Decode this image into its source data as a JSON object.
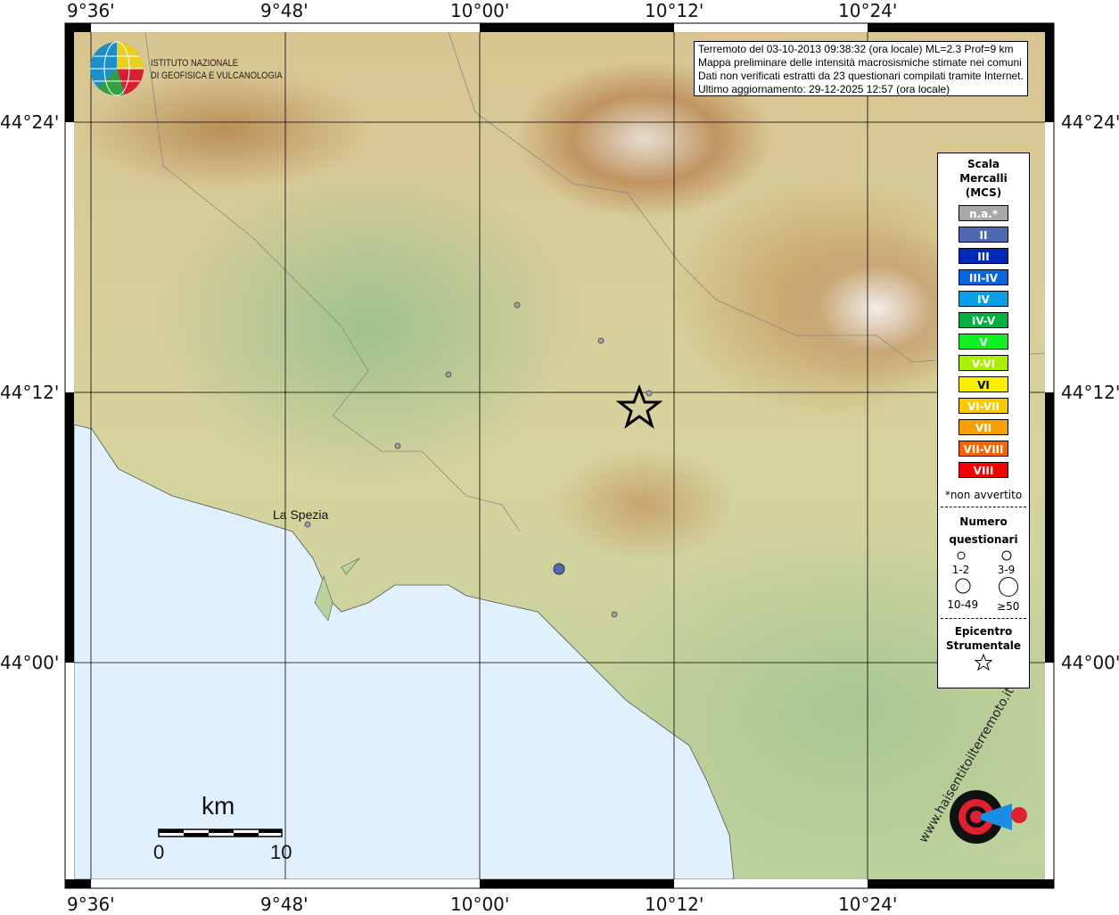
{
  "info": {
    "line1": "Terremoto del 03-10-2013 09:38:32 (ora locale) ML=2.3 Prof=9 km",
    "line2": "Mappa preliminare delle intensità macrosismiche stimate nei comuni",
    "line3": "Dati non verificati estratti da 23 questionari compilati tramite Internet.",
    "line4": "Ultimo aggiornamento: 29-12-2025 12:57 (ora locale)"
  },
  "logo": {
    "line1": "ISTITUTO NAZIONALE",
    "line2": "DI GEOFISICA E VULCANOLOGIA"
  },
  "lon_labels": [
    "9°36'",
    "9°48'",
    "10°00'",
    "10°12'",
    "10°24'"
  ],
  "lat_labels": [
    "44°24'",
    "44°12'",
    "44°00'"
  ],
  "city": "La Spezia",
  "legend": {
    "title1": "Scala",
    "title2": "Mercalli",
    "title3": "(MCS)",
    "items": [
      {
        "label": "n.a.*",
        "color": "#a8a8a8"
      },
      {
        "label": "II",
        "color": "#5068b0"
      },
      {
        "label": "III",
        "color": "#0028b8"
      },
      {
        "label": "III-IV",
        "color": "#0a64dc"
      },
      {
        "label": "IV",
        "color": "#0aa0e8"
      },
      {
        "label": "IV-V",
        "color": "#00b040"
      },
      {
        "label": "V",
        "color": "#10f020"
      },
      {
        "label": "V-VI",
        "color": "#a8f000"
      },
      {
        "label": "VI",
        "color": "#f8f000"
      },
      {
        "label": "VI-VII",
        "color": "#f8c800"
      },
      {
        "label": "VII",
        "color": "#f8a000"
      },
      {
        "label": "VII-VIII",
        "color": "#f86400"
      },
      {
        "label": "VIII",
        "color": "#f80000"
      }
    ],
    "note": "*non avvertito",
    "num_title1": "Numero",
    "num_title2": "questionari",
    "sizes": [
      "1-2",
      "3-9",
      "10-49",
      "≥50"
    ],
    "epi1": "Epicentro",
    "epi2": "Strumentale"
  },
  "scalebar": {
    "unit": "km",
    "min": "0",
    "max": "10"
  },
  "watermark": "www.haisentitoilterremoto.it"
}
